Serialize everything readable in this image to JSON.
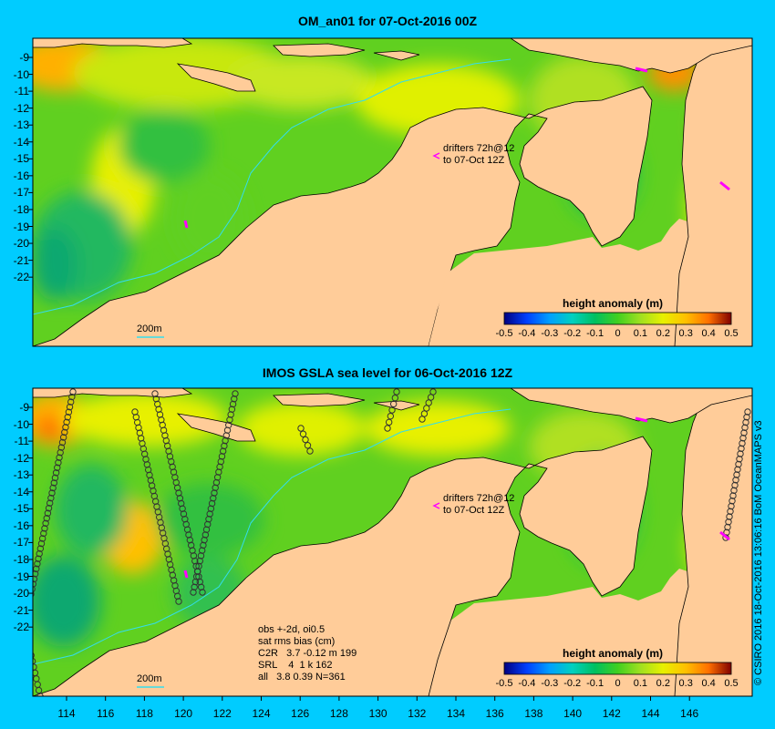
{
  "top": {
    "title": "OM_an01 for 07-Oct-2016 00Z",
    "drifters_line1": "drifters 72h@12",
    "drifters_line2": "to 07-Oct 12Z",
    "scale_label": "200m",
    "colorbar_title": "height anomaly (m)",
    "colorbar_ticks": [
      "-0.5",
      "-0.4",
      "-0.3",
      "-0.2",
      "-0.1",
      "0",
      "0.1",
      "0.2",
      "0.3",
      "0.4",
      "0.5"
    ],
    "y_ticks": [
      "-9",
      "-10",
      "-11",
      "-12",
      "-13",
      "-14",
      "-15",
      "-16",
      "-17",
      "-18",
      "-19",
      "-20",
      "-21",
      "-22"
    ]
  },
  "bottom": {
    "title": "IMOS GSLA sea level  for 06-Oct-2016 12Z",
    "drifters_line1": "drifters 72h@12",
    "drifters_line2": "to 07-Oct 12Z",
    "scale_label": "200m",
    "colorbar_title": "height anomaly (m)",
    "colorbar_ticks": [
      "-0.5",
      "-0.4",
      "-0.3",
      "-0.2",
      "-0.1",
      "0",
      "0.1",
      "0.2",
      "0.3",
      "0.4",
      "0.5"
    ],
    "y_ticks": [
      "-9",
      "-10",
      "-11",
      "-12",
      "-13",
      "-14",
      "-15",
      "-16",
      "-17",
      "-18",
      "-19",
      "-20",
      "-21",
      "-22"
    ],
    "stats": {
      "line1": "obs +-2d, oi0.5",
      "line2": "sat rms bias (cm)",
      "line3": "C2R   3.7 -0.12 m 199",
      "line4": "SRL    4  1 k 162",
      "line5": "all   3.8 0.39 N=361"
    }
  },
  "x_ticks": [
    "114",
    "116",
    "118",
    "120",
    "122",
    "124",
    "126",
    "128",
    "130",
    "132",
    "134",
    "136",
    "138",
    "140",
    "142",
    "144",
    "146"
  ],
  "credit": "© CSIRO 2016  18-Oct-2016 13:06:16 BoM OceanMAPS v3",
  "colors": {
    "background": "#00ccff",
    "land": "#ffcc99",
    "shelf": "#a3a38a",
    "drifter": "#ff00ff",
    "colormap": [
      "#000080",
      "#0040ff",
      "#00a0ff",
      "#00d0c0",
      "#00c060",
      "#40d020",
      "#a0e020",
      "#e8f000",
      "#ffc000",
      "#ff7000",
      "#e03000",
      "#800000"
    ]
  }
}
